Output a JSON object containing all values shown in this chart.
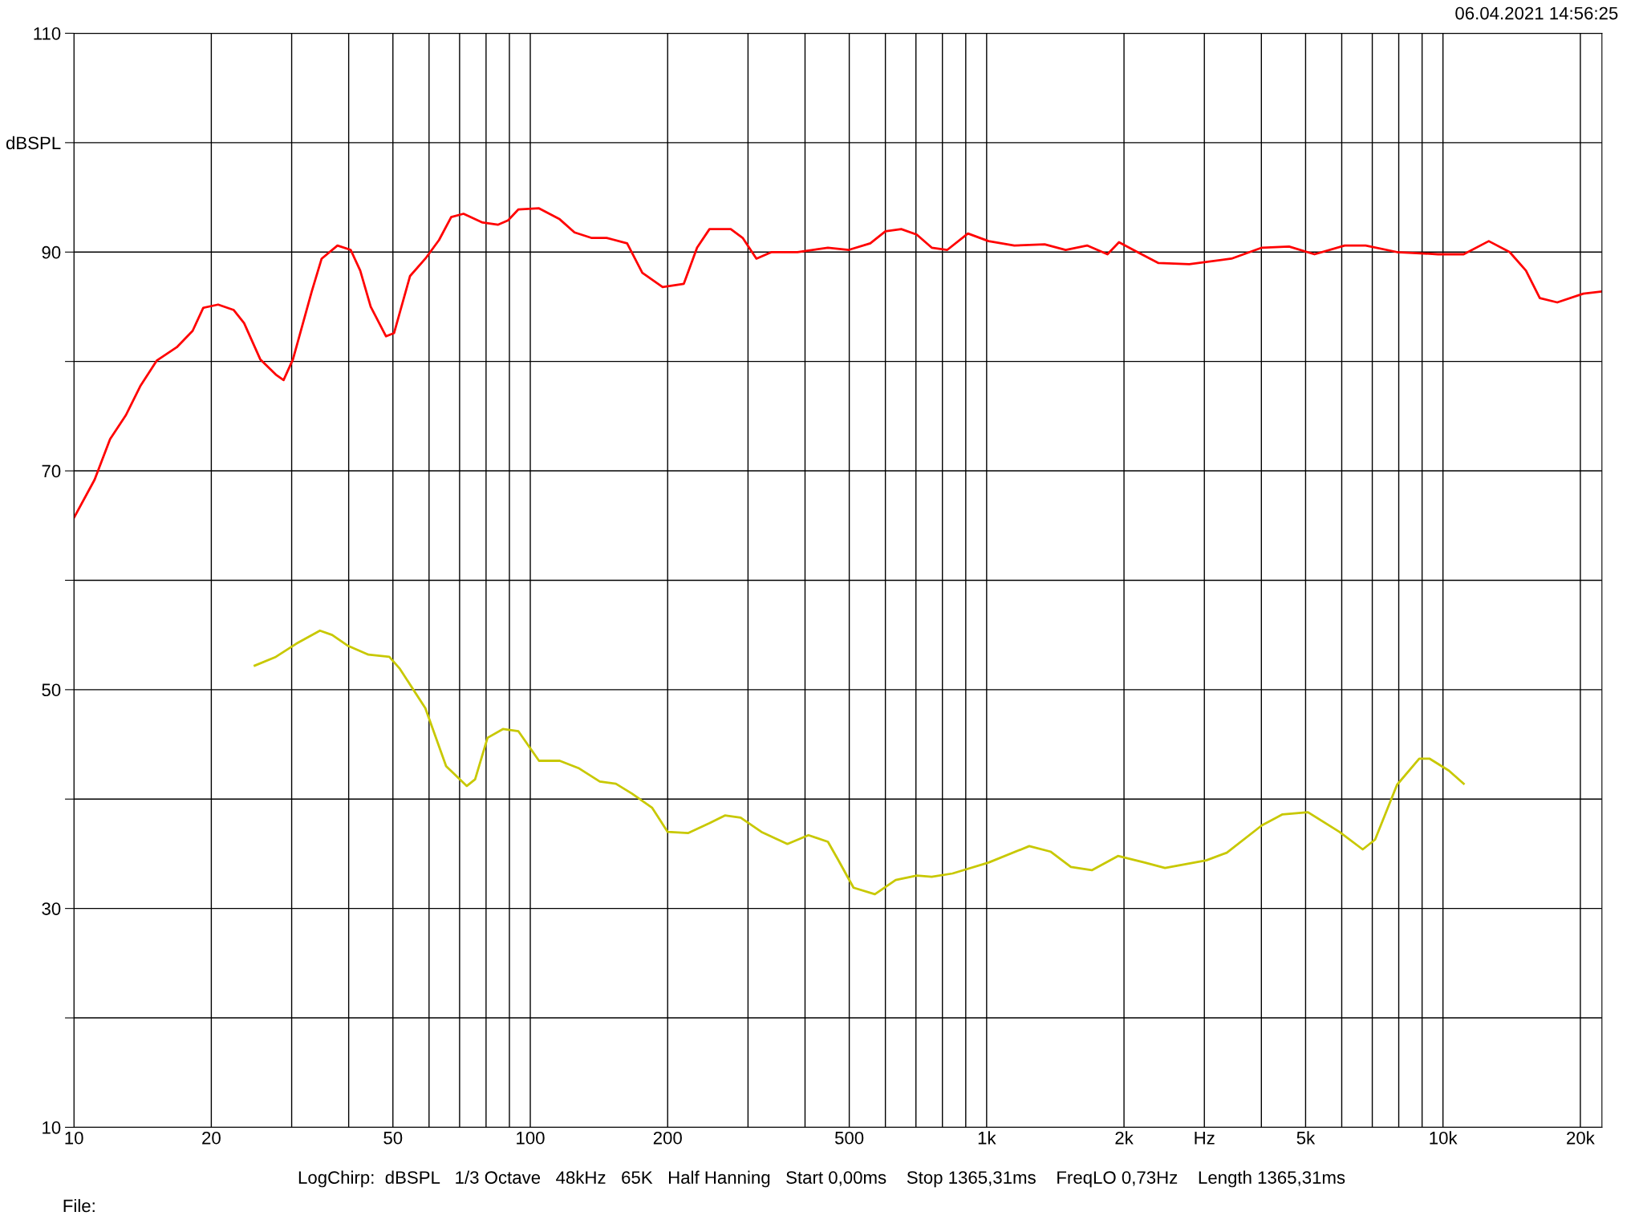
{
  "chart_data": {
    "type": "line",
    "log": "x",
    "grid": true,
    "legend": false,
    "marker": "none",
    "line_style": "solid",
    "xlim": [
      10,
      22300
    ],
    "ylim": [
      10,
      110
    ],
    "xticks": [
      10,
      20,
      {
        "value": 30,
        "label": null
      },
      {
        "value": 40,
        "label": null
      },
      50,
      {
        "value": 60,
        "label": null
      },
      {
        "value": 70,
        "label": null
      },
      {
        "value": 80,
        "label": null
      },
      {
        "value": 90,
        "label": null
      },
      100,
      200,
      {
        "value": 300,
        "label": null
      },
      {
        "value": 400,
        "label": null
      },
      500,
      {
        "value": 600,
        "label": null
      },
      {
        "value": 700,
        "label": null
      },
      {
        "value": 800,
        "label": null
      },
      {
        "value": 900,
        "label": null
      },
      {
        "value": 1000,
        "label": "1k"
      },
      {
        "value": 2000,
        "label": "2k"
      },
      {
        "value": 3000,
        "label": "Hz"
      },
      {
        "value": 4000,
        "label": null
      },
      {
        "value": 5000,
        "label": "5k"
      },
      {
        "value": 6000,
        "label": null
      },
      {
        "value": 7000,
        "label": null
      },
      {
        "value": 8000,
        "label": null
      },
      {
        "value": 9000,
        "label": null
      },
      {
        "value": 10000,
        "label": "10k"
      },
      {
        "value": 20000,
        "label": "20k"
      }
    ],
    "yticks": [
      10,
      {
        "value": 20,
        "label": null
      },
      30,
      {
        "value": 40,
        "label": null
      },
      50,
      {
        "value": 60,
        "label": null
      },
      70,
      {
        "value": 80,
        "label": null
      },
      90,
      {
        "value": 100,
        "label": "dBSPL"
      },
      110
    ],
    "annotations": [
      "06.04.2021 14:56:25",
      "LogChirp:  dBSPL   1/3 Octave   48kHz   65K   Half Hanning   Start 0,00ms    Stop 1365,31ms    FreqLO 0,73Hz    Length 1365,31ms",
      "File:"
    ],
    "series": [
      {
        "color": "#ff0000",
        "x": [
          10,
          11.1,
          12,
          13,
          14,
          15.2,
          16.8,
          18.2,
          19.2,
          20.7,
          22.4,
          23.6,
          25.6,
          27.7,
          28.8,
          30.2,
          33.2,
          34.9,
          37.8,
          40.4,
          42.4,
          44.7,
          48.3,
          50.3,
          54.5,
          58.9,
          63.1,
          67.1,
          71.4,
          78.6,
          84.9,
          89.4,
          94.2,
          104.5,
          116,
          125,
          136,
          147,
          163,
          176,
          195,
          217,
          232,
          247,
          275,
          292,
          313,
          338,
          385,
          449,
          499,
          556,
          600,
          650,
          703,
          758,
          820,
          910,
          1010,
          1150,
          1340,
          1490,
          1660,
          1840,
          1950,
          2140,
          2380,
          2780,
          3440,
          4010,
          4600,
          5230,
          6090,
          6770,
          7930,
          9750,
          11100,
          12600,
          14000,
          15200,
          16300,
          17800,
          20300,
          22300
        ],
        "values": [
          65.7,
          69.2,
          72.9,
          75.1,
          77.8,
          80.1,
          81.3,
          82.8,
          84.9,
          85.2,
          84.7,
          83.5,
          80.2,
          78.8,
          78.3,
          80.2,
          86.4,
          89.4,
          90.6,
          90.2,
          88.3,
          85.0,
          82.3,
          82.6,
          87.8,
          89.4,
          91.1,
          93.2,
          93.5,
          92.7,
          92.5,
          92.9,
          93.9,
          94.0,
          93.0,
          91.8,
          91.3,
          91.3,
          90.8,
          88.1,
          86.8,
          87.1,
          90.4,
          92.1,
          92.1,
          91.3,
          89.4,
          90.0,
          90.0,
          90.4,
          90.2,
          90.8,
          91.9,
          92.1,
          91.6,
          90.4,
          90.2,
          91.7,
          91.0,
          90.6,
          90.7,
          90.2,
          90.6,
          89.8,
          90.9,
          90.0,
          89.0,
          88.9,
          89.4,
          90.4,
          90.5,
          89.8,
          90.6,
          90.6,
          90.0,
          89.8,
          89.8,
          91.0,
          90.0,
          88.3,
          85.8,
          85.4,
          86.2,
          86.4
        ]
      },
      {
        "color": "#c8c800",
        "x": [
          24.9,
          27.7,
          30.7,
          34.6,
          36.8,
          39.9,
          44.2,
          49.1,
          51.8,
          58.9,
          65.4,
          72.6,
          75.7,
          80.6,
          87.1,
          94.2,
          104.5,
          116,
          128,
          142,
          154,
          167,
          185,
          200,
          222,
          247,
          267,
          289,
          321,
          366,
          407,
          449,
          472,
          511,
          569,
          632,
          703,
          758,
          842,
          1010,
          1240,
          1380,
          1530,
          1700,
          1940,
          2220,
          2460,
          3030,
          3360,
          4010,
          4450,
          5060,
          5930,
          6670,
          7100,
          7930,
          8870,
          9340,
          10300,
          11100
        ],
        "values": [
          52.2,
          53.0,
          54.2,
          55.4,
          55.0,
          54.0,
          53.2,
          53.0,
          51.9,
          48.3,
          43.0,
          41.2,
          41.8,
          45.6,
          46.4,
          46.2,
          43.5,
          43.5,
          42.8,
          41.6,
          41.4,
          40.5,
          39.2,
          37.0,
          36.9,
          37.8,
          38.5,
          38.3,
          37.0,
          35.9,
          36.7,
          36.1,
          34.5,
          31.9,
          31.3,
          32.6,
          33.0,
          32.9,
          33.2,
          34.2,
          35.7,
          35.2,
          33.8,
          33.5,
          34.8,
          34.2,
          33.7,
          34.4,
          35.1,
          37.6,
          38.6,
          38.8,
          37.0,
          35.4,
          36.3,
          41.3,
          43.7,
          43.7,
          42.6,
          41.4
        ]
      }
    ]
  }
}
